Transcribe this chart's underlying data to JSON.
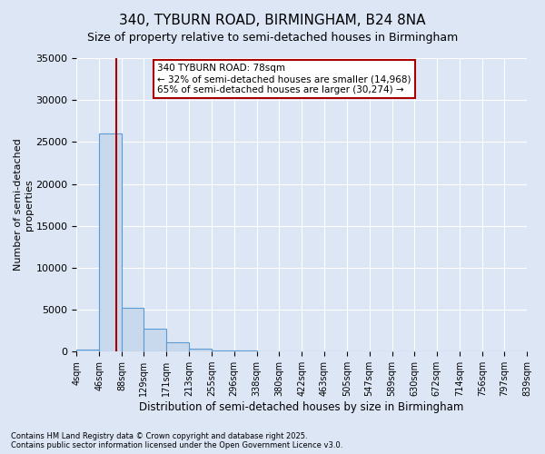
{
  "title": "340, TYBURN ROAD, BIRMINGHAM, B24 8NA",
  "subtitle": "Size of property relative to semi-detached houses in Birmingham",
  "xlabel": "Distribution of semi-detached houses by size in Birmingham",
  "ylabel": "Number of semi-detached\nproperties",
  "footnote": "Contains HM Land Registry data © Crown copyright and database right 2025.\nContains public sector information licensed under the Open Government Licence v3.0.",
  "bin_edges": [
    4,
    46,
    88,
    129,
    171,
    213,
    255,
    296,
    338,
    380,
    422,
    463,
    505,
    547,
    589,
    630,
    672,
    714,
    756,
    797,
    839
  ],
  "bar_heights": [
    200,
    26000,
    5200,
    2700,
    1100,
    400,
    150,
    80,
    50,
    30,
    20,
    15,
    10,
    8,
    5,
    4,
    3,
    2,
    1,
    1
  ],
  "bar_color": "#c8d9ed",
  "bar_edgecolor": "#5b9bd5",
  "property_size": 78,
  "property_label": "340 TYBURN ROAD: 78sqm",
  "pct_smaller": 32,
  "pct_larger": 65,
  "n_smaller": 14968,
  "n_larger": 30274,
  "red_line_color": "#aa0000",
  "annotation_box_color": "#aa0000",
  "ylim": [
    0,
    35000
  ],
  "yticks": [
    0,
    5000,
    10000,
    15000,
    20000,
    25000,
    30000,
    35000
  ],
  "background_color": "#dce6f5",
  "plot_background": "#dce6f5",
  "title_fontsize": 11,
  "subtitle_fontsize": 9
}
